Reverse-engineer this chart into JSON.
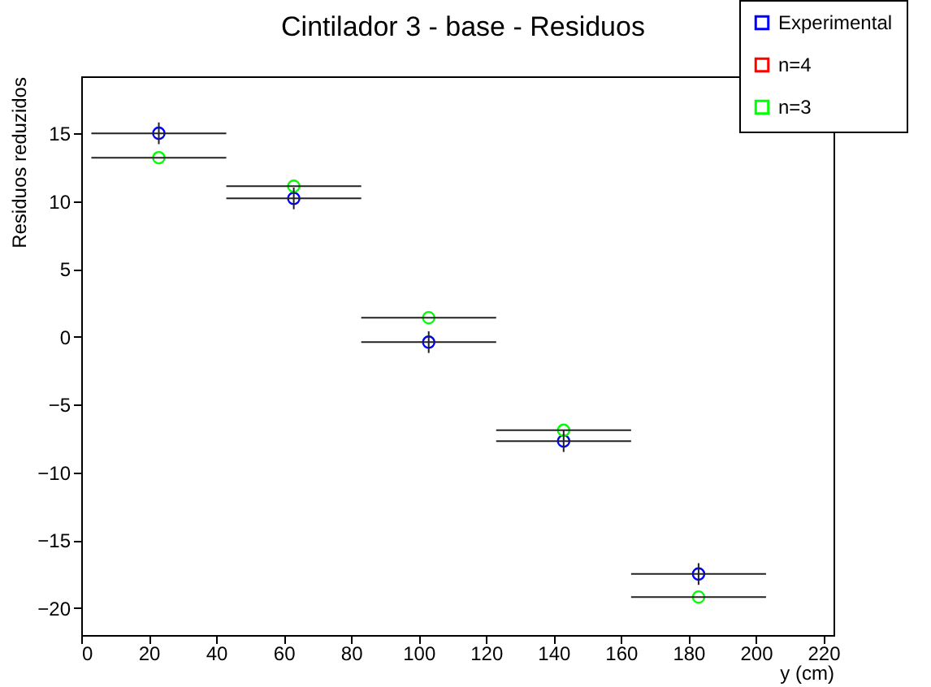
{
  "chart_data": {
    "type": "scatter",
    "title": "Cintilador 3 - base - Residuos",
    "xlabel": "y (cm)",
    "ylabel": "Residuos reduzidos",
    "x": [
      23,
      63,
      103,
      143,
      183
    ],
    "series": [
      {
        "name": "Experimental",
        "color": "#0000ff",
        "values": [
          15.0,
          10.2,
          -0.4,
          -7.7,
          -17.5
        ],
        "errors": [
          0.8,
          0.8,
          0.8,
          0.8,
          0.8
        ],
        "xerrors": [
          20,
          20,
          20,
          20,
          20
        ]
      },
      {
        "name": "n=4",
        "color": "#ff0000",
        "values": [
          null,
          null,
          null,
          null,
          null
        ]
      },
      {
        "name": "n=3",
        "color": "#00ff00",
        "values": [
          13.2,
          11.1,
          1.4,
          -6.9,
          -19.2
        ],
        "xerrors": [
          20,
          20,
          20,
          20,
          20
        ]
      }
    ],
    "xlim": [
      0,
      223
    ],
    "ylim": [
      -22,
      19.2
    ],
    "xticks": [
      0,
      20,
      40,
      60,
      80,
      100,
      120,
      140,
      160,
      180,
      200,
      220
    ],
    "yticks": [
      -20,
      -15,
      -10,
      -5,
      0,
      5,
      10,
      15
    ],
    "marker": "circle",
    "legend": "top right",
    "grid": false
  }
}
